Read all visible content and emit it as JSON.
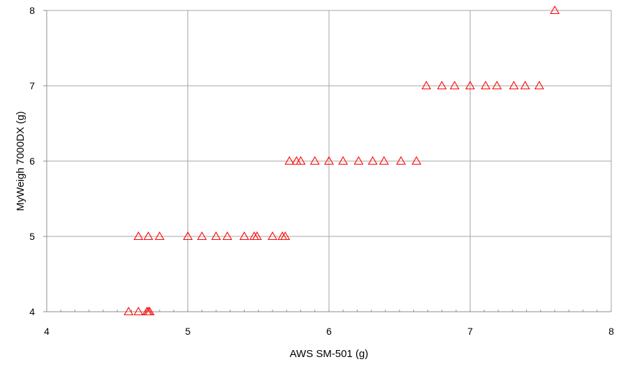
{
  "chart_data": {
    "type": "scatter",
    "title": "",
    "xlabel": "AWS SM-501 (g)",
    "ylabel": "MyWeigh 7000DX (g)",
    "xlim": [
      4,
      8
    ],
    "ylim": [
      4,
      8
    ],
    "xticks": [
      "4",
      "5",
      "6",
      "7",
      "8"
    ],
    "yticks": [
      "4",
      "5",
      "6",
      "7",
      "8"
    ],
    "grid": true,
    "legend": "none",
    "marker": "triangle-open",
    "marker_color": "#FF0000",
    "series": [
      {
        "points": [
          [
            4.58,
            4
          ],
          [
            4.65,
            4
          ],
          [
            4.71,
            4
          ],
          [
            4.72,
            4
          ],
          [
            4.73,
            4
          ],
          [
            4.65,
            5
          ],
          [
            4.72,
            5
          ],
          [
            4.8,
            5
          ],
          [
            5.0,
            5
          ],
          [
            5.1,
            5
          ],
          [
            5.2,
            5
          ],
          [
            5.28,
            5
          ],
          [
            5.4,
            5
          ],
          [
            5.47,
            5
          ],
          [
            5.49,
            5
          ],
          [
            5.6,
            5
          ],
          [
            5.67,
            5
          ],
          [
            5.69,
            5
          ],
          [
            5.72,
            6
          ],
          [
            5.77,
            6
          ],
          [
            5.8,
            6
          ],
          [
            5.9,
            6
          ],
          [
            6.0,
            6
          ],
          [
            6.1,
            6
          ],
          [
            6.21,
            6
          ],
          [
            6.31,
            6
          ],
          [
            6.39,
            6
          ],
          [
            6.51,
            6
          ],
          [
            6.62,
            6
          ],
          [
            6.69,
            7
          ],
          [
            6.8,
            7
          ],
          [
            6.89,
            7
          ],
          [
            7.0,
            7
          ],
          [
            7.11,
            7
          ],
          [
            7.19,
            7
          ],
          [
            7.31,
            7
          ],
          [
            7.39,
            7
          ],
          [
            7.49,
            7
          ],
          [
            7.6,
            8
          ]
        ]
      }
    ]
  }
}
